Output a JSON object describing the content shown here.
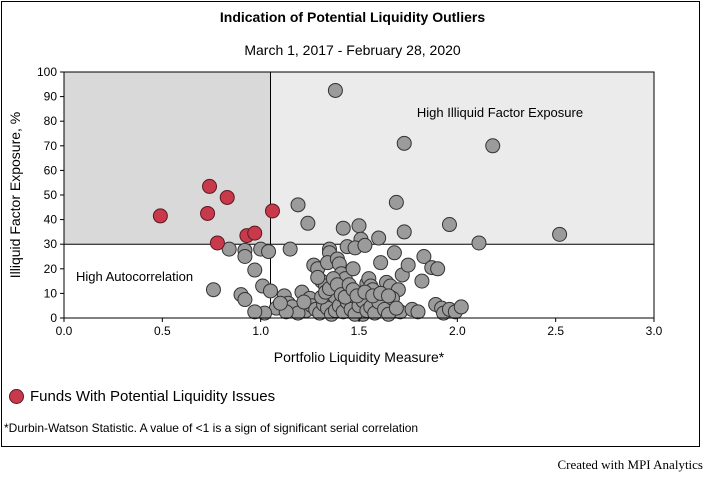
{
  "title": "Indication of Potential Liquidity Outliers",
  "subtitle": "March 1, 2017 - February 28, 2020",
  "legend_label": "Funds With Potential Liquidity Issues",
  "footnote": "*Durbin-Watson Statistic. A value of <1 is a sign of significant serial correlation",
  "credit": "Created with MPI Analytics",
  "colors": {
    "highlight": "#c8394b",
    "normal": "#9b9b9b",
    "quadrant_dark": "#d9d9d9",
    "quadrant_light": "#ebebeb"
  },
  "chart_data": {
    "type": "scatter",
    "xlabel": "Portfolio Liquidity Measure*",
    "ylabel": "Illiquid Factor Exposure, %",
    "xlim": [
      0,
      3.0
    ],
    "ylim": [
      0,
      100
    ],
    "xticks": [
      "0.0",
      "0.5",
      "1.0",
      "1.5",
      "2.0",
      "2.5",
      "3.0"
    ],
    "yticks": [
      "0",
      "10",
      "20",
      "30",
      "40",
      "50",
      "60",
      "70",
      "80",
      "90",
      "100"
    ],
    "thresholds": {
      "x": 1.05,
      "y": 30
    },
    "annotations": [
      "High Illiquid Factor Exposure",
      "High Autocorrelation"
    ],
    "series": [
      {
        "name": "Funds With Potential Liquidity Issues",
        "points": [
          [
            0.49,
            41.5
          ],
          [
            0.74,
            53.5
          ],
          [
            0.73,
            42.5
          ],
          [
            0.83,
            49
          ],
          [
            0.78,
            30.5
          ],
          [
            0.93,
            33.5
          ],
          [
            0.97,
            34.5
          ],
          [
            1.06,
            43.5
          ]
        ]
      },
      {
        "points": [
          [
            1.38,
            92.5
          ],
          [
            1.73,
            71
          ],
          [
            2.18,
            70
          ],
          [
            1.69,
            47
          ],
          [
            1.96,
            38
          ],
          [
            2.11,
            30.5
          ],
          [
            2.52,
            34
          ],
          [
            1.19,
            46
          ],
          [
            1.24,
            38.5
          ],
          [
            1.42,
            36.5
          ],
          [
            1.5,
            37.5
          ],
          [
            1.73,
            35
          ],
          [
            1.35,
            28
          ],
          [
            1.35,
            26.5
          ],
          [
            1.6,
            32.5
          ],
          [
            1.51,
            32
          ],
          [
            1.44,
            29
          ],
          [
            1.48,
            28.5
          ],
          [
            1.53,
            29.5
          ],
          [
            1.0,
            28
          ],
          [
            1.04,
            27
          ],
          [
            1.15,
            28
          ],
          [
            0.84,
            28
          ],
          [
            0.92,
            27.5
          ],
          [
            0.92,
            25
          ],
          [
            0.97,
            19.5
          ],
          [
            0.76,
            11.5
          ],
          [
            0.9,
            9.5
          ],
          [
            0.92,
            7.5
          ],
          [
            1.01,
            13
          ],
          [
            1.05,
            11
          ],
          [
            1.12,
            9
          ],
          [
            1.14,
            6
          ],
          [
            1.08,
            4
          ],
          [
            1.02,
            2
          ],
          [
            0.97,
            2.5
          ],
          [
            1.16,
            4.5
          ],
          [
            1.21,
            10.5
          ],
          [
            1.23,
            3
          ],
          [
            1.25,
            8
          ],
          [
            1.27,
            21.5
          ],
          [
            1.29,
            20
          ],
          [
            1.31,
            15
          ],
          [
            1.33,
            13
          ],
          [
            1.34,
            22.5
          ],
          [
            1.36,
            10
          ],
          [
            1.37,
            7
          ],
          [
            1.39,
            24
          ],
          [
            1.4,
            22
          ],
          [
            1.41,
            18
          ],
          [
            1.43,
            16
          ],
          [
            1.45,
            11
          ],
          [
            1.46,
            9
          ],
          [
            1.47,
            20
          ],
          [
            1.48,
            6
          ],
          [
            1.49,
            4
          ],
          [
            1.51,
            2.5
          ],
          [
            1.52,
            1.5
          ],
          [
            1.54,
            14
          ],
          [
            1.55,
            16
          ],
          [
            1.56,
            13
          ],
          [
            1.57,
            11.5
          ],
          [
            1.58,
            8
          ],
          [
            1.59,
            5.5
          ],
          [
            1.61,
            22.5
          ],
          [
            1.62,
            7
          ],
          [
            1.64,
            14.5
          ],
          [
            1.66,
            13
          ],
          [
            1.68,
            26.5
          ],
          [
            1.7,
            11.5
          ],
          [
            1.71,
            2.5
          ],
          [
            1.72,
            17.5
          ],
          [
            1.75,
            21.5
          ],
          [
            1.77,
            3.5
          ],
          [
            1.8,
            2.5
          ],
          [
            1.82,
            15
          ],
          [
            1.83,
            25
          ],
          [
            1.87,
            20.5
          ],
          [
            1.9,
            20
          ],
          [
            1.89,
            5.5
          ],
          [
            1.92,
            4
          ],
          [
            1.93,
            2
          ],
          [
            1.96,
            3.5
          ],
          [
            1.99,
            2.5
          ],
          [
            2.02,
            4.5
          ],
          [
            1.26,
            5
          ],
          [
            1.28,
            3.5
          ],
          [
            1.3,
            2
          ],
          [
            1.32,
            5.5
          ],
          [
            1.34,
            4
          ],
          [
            1.36,
            1.5
          ],
          [
            1.38,
            3
          ],
          [
            1.4,
            5
          ],
          [
            1.42,
            2.5
          ],
          [
            1.44,
            6.5
          ],
          [
            1.46,
            3.5
          ],
          [
            1.48,
            1.5
          ],
          [
            1.5,
            5
          ],
          [
            1.52,
            7
          ],
          [
            1.54,
            3
          ],
          [
            1.56,
            4.5
          ],
          [
            1.58,
            2
          ],
          [
            1.6,
            6.5
          ],
          [
            1.63,
            3.5
          ],
          [
            1.65,
            1.5
          ],
          [
            1.67,
            8
          ],
          [
            1.69,
            4
          ],
          [
            1.31,
            8.5
          ],
          [
            1.33,
            10.5
          ],
          [
            1.35,
            12
          ],
          [
            1.37,
            16
          ],
          [
            1.39,
            13.5
          ],
          [
            1.41,
            9.5
          ],
          [
            1.43,
            8.5
          ],
          [
            1.45,
            13.5
          ],
          [
            1.47,
            11.5
          ],
          [
            1.49,
            9
          ],
          [
            1.53,
            10.5
          ],
          [
            1.57,
            9
          ],
          [
            1.61,
            10
          ],
          [
            1.65,
            9
          ],
          [
            1.19,
            2
          ],
          [
            1.22,
            6.5
          ],
          [
            1.13,
            2.5
          ],
          [
            1.1,
            6
          ],
          [
            1.29,
            16.5
          ]
        ]
      }
    ]
  }
}
